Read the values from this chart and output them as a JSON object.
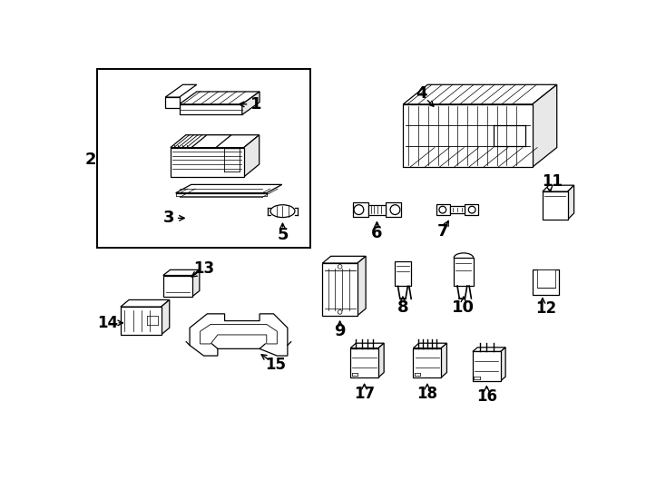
{
  "bg_color": "#ffffff",
  "line_color": "#000000",
  "fig_width": 7.34,
  "fig_height": 5.4,
  "dpi": 100,
  "lw": 0.9
}
